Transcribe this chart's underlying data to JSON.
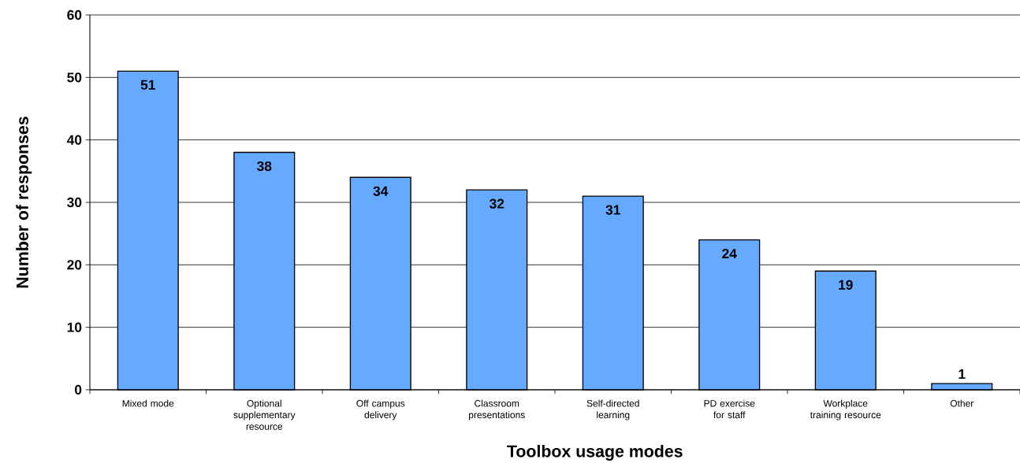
{
  "chart_data": {
    "type": "bar",
    "xlabel": "Toolbox usage modes",
    "ylabel": "Number of responses",
    "categories": [
      "Mixed mode",
      "Optional supplementary resource",
      "Off campus delivery",
      "Classroom presentations",
      "Self-directed learning",
      "PD exercise for staff",
      "Workplace training resource",
      "Other"
    ],
    "values": [
      51,
      38,
      34,
      32,
      31,
      24,
      19,
      1
    ],
    "color": "#66aaff",
    "ylim": [
      0,
      60
    ],
    "yticks": [
      0,
      10,
      20,
      30,
      40,
      50,
      60
    ],
    "grid": "y",
    "data_labels": true
  }
}
